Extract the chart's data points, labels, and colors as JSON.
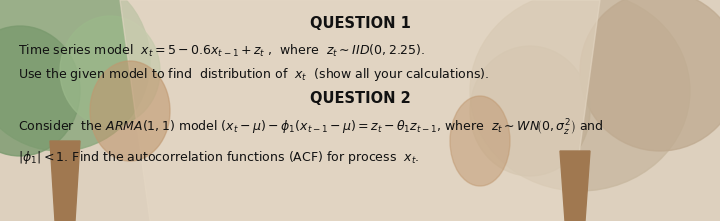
{
  "background_color": "#e8ddd0",
  "fig_width": 7.2,
  "fig_height": 2.21,
  "dpi": 100,
  "q1_title": "QUESTION 1",
  "q2_title": "QUESTION 2",
  "line1_text": "Time series model  $x_t =5-0.6x_{t-1}+z_t$ ,  where  $z_t \\sim IID(0,2.25)$.",
  "line2_text": "Use the given model to find  distribution of  $x_t$  (show all your calculations).",
  "line3_text": "Consider  the $ARMA(1,1)$ model $(x_t-\\mu)-\\phi_1(x_{t-1}-\\mu)=z_t-\\theta_1 z_{t-1}$, where  $z_t \\sim WN\\!\\left(0,\\sigma_z^2\\right)$ and",
  "line4_text": "$|\\phi_1|<1$. Find the autocorrelation functions (ACF) for process  $x_t$.",
  "fontsize_title": 10.5,
  "fontsize_body": 9.0,
  "text_color": "#111111",
  "tree_left_color": "#8aaa7a",
  "tree_right_color": "#c8b8a2",
  "trunk_color": "#b08060"
}
